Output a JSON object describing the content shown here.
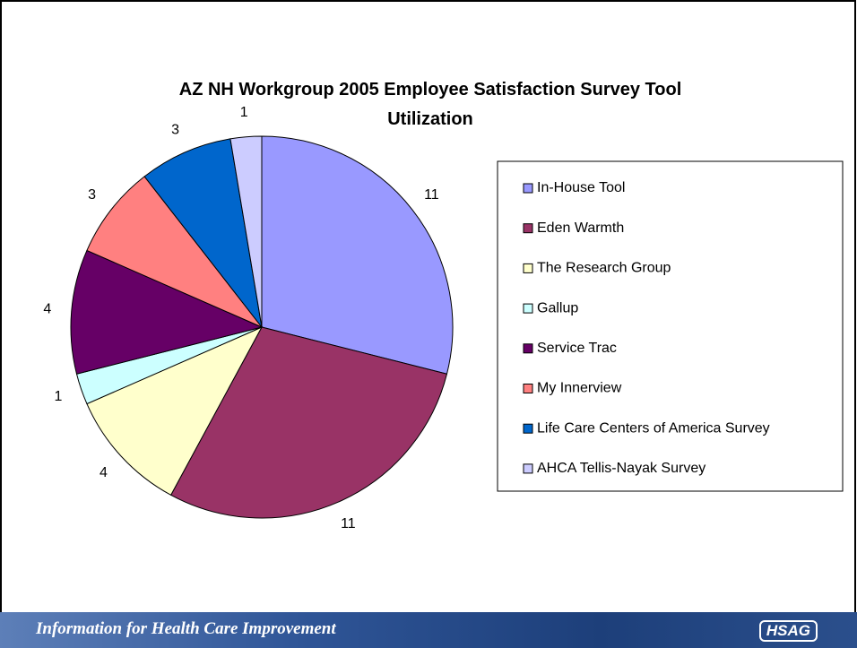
{
  "chart_data": {
    "type": "pie",
    "title": "AZ NH Workgroup 2005 Employee Satisfaction Survey Tool Utilization",
    "categories": [
      "In-House Tool",
      "Eden Warmth",
      "The Research Group",
      "Gallup",
      "Service Trac",
      "My Innerview",
      "Life Care Centers of America Survey",
      "AHCA Tellis-Nayak Survey"
    ],
    "values": [
      11,
      11,
      4,
      1,
      4,
      3,
      3,
      1
    ],
    "colors": [
      "#9999ff",
      "#993366",
      "#ffffcc",
      "#ccffff",
      "#660066",
      "#ff8080",
      "#0066cc",
      "#ccccff"
    ],
    "legend": "right"
  },
  "footer": {
    "tagline": "Information for Health Care Improvement",
    "logo": "HSAG"
  }
}
